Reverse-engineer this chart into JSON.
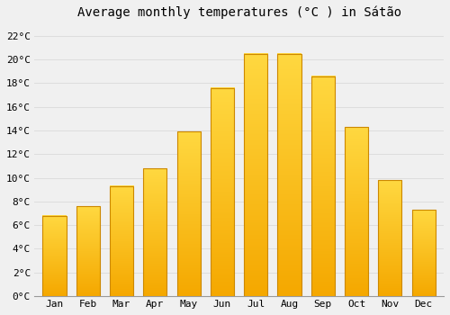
{
  "title": "Average monthly temperatures (°C ) in Sátão",
  "months": [
    "Jan",
    "Feb",
    "Mar",
    "Apr",
    "May",
    "Jun",
    "Jul",
    "Aug",
    "Sep",
    "Oct",
    "Nov",
    "Dec"
  ],
  "temperatures": [
    6.8,
    7.6,
    9.3,
    10.8,
    13.9,
    17.6,
    20.5,
    20.5,
    18.6,
    14.3,
    9.8,
    7.3
  ],
  "bar_color_bottom": "#F5A800",
  "bar_color_top": "#FFD840",
  "bar_edge_color": "#CC8800",
  "ylim": [
    0,
    23
  ],
  "yticks": [
    0,
    2,
    4,
    6,
    8,
    10,
    12,
    14,
    16,
    18,
    20,
    22
  ],
  "ytick_labels": [
    "0°C",
    "2°C",
    "4°C",
    "6°C",
    "8°C",
    "10°C",
    "12°C",
    "14°C",
    "16°C",
    "18°C",
    "20°C",
    "22°C"
  ],
  "bg_color": "#F0F0F0",
  "grid_color": "#DDDDDD",
  "font_family": "monospace",
  "title_fontsize": 10,
  "tick_fontsize": 8,
  "bar_width": 0.7,
  "gradient_steps": 100
}
